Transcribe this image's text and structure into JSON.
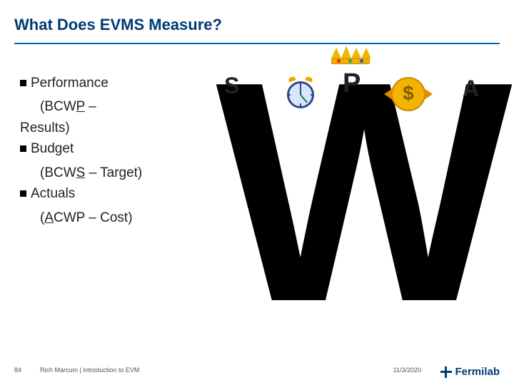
{
  "title": "What Does EVMS Measure?",
  "bullets": {
    "perf": {
      "label": "Performance",
      "sub_pre": "(BCW",
      "sub_u": "P",
      "sub_post": " – Results)",
      "wrap": "Results)"
    },
    "budget": {
      "label": "Budget",
      "sub_pre": "(BCW",
      "sub_u": "S",
      "sub_post": " – Target)"
    },
    "actuals": {
      "label": "Actuals",
      "sub_pre": "(",
      "sub_u": "A",
      "sub_post": "CWP – Cost)"
    }
  },
  "letters": {
    "s": "S",
    "p": "P",
    "a": "A",
    "w": "W"
  },
  "coin_symbol": "$",
  "footer": {
    "page": "84",
    "presenter": "Rich Marcum | Introduction to EVM",
    "date": "11/3/2020",
    "logo": "Fermilab"
  },
  "colors": {
    "accent": "#003b71",
    "rule": "#0066b3"
  }
}
